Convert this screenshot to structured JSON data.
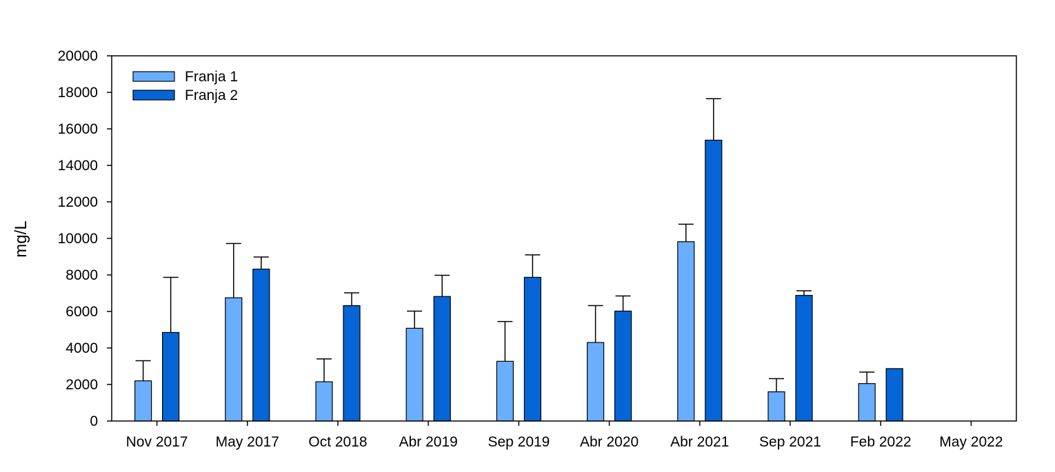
{
  "chart_data": {
    "type": "bar",
    "title": "",
    "xlabel": "",
    "ylabel": "mg/L",
    "ylim": [
      0,
      20000
    ],
    "yticks": [
      0,
      2000,
      4000,
      6000,
      8000,
      10000,
      12000,
      14000,
      16000,
      18000,
      20000
    ],
    "grid": false,
    "legend_position": "top-left",
    "error_bars": "upper",
    "categories": [
      "Nov 2017",
      "May 2017",
      "Oct 2018",
      "Abr 2019",
      "Sep 2019",
      "Abr 2020",
      "Abr 2021",
      "Sep 2021",
      "Feb 2022",
      "May 2022"
    ],
    "series": [
      {
        "name": "Franja 1",
        "color": "#6aaeff",
        "values": [
          2200,
          6750,
          2150,
          5080,
          3270,
          4300,
          9820,
          1600,
          2050,
          null
        ],
        "error_upper": [
          3300,
          9720,
          3400,
          6020,
          5450,
          6320,
          10780,
          2320,
          2680,
          null
        ]
      },
      {
        "name": "Franja 2",
        "color": "#0565d6",
        "values": [
          4850,
          8320,
          6320,
          6820,
          7870,
          6020,
          15380,
          6880,
          2870,
          null
        ],
        "error_upper": [
          7870,
          8980,
          7020,
          7980,
          9100,
          6850,
          17650,
          7130,
          null,
          null
        ]
      }
    ]
  }
}
